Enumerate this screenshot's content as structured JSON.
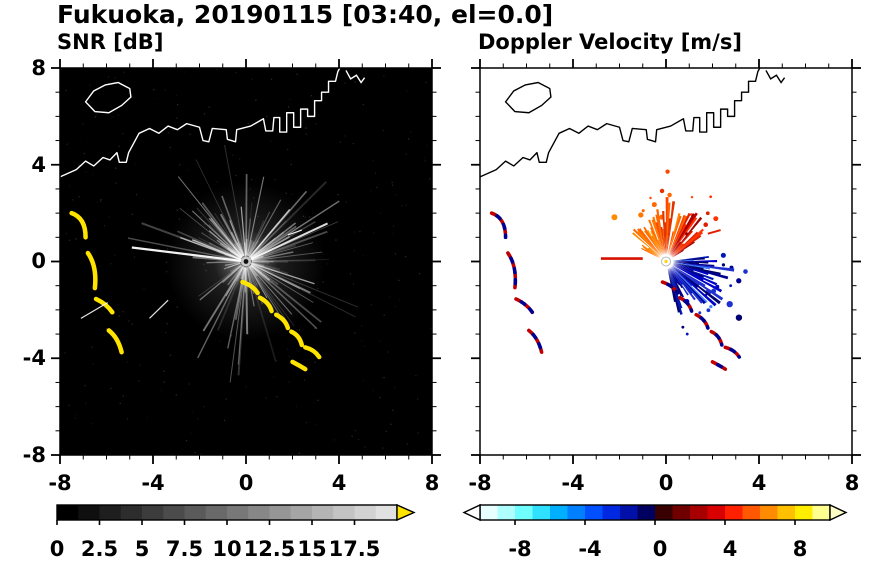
{
  "title": "Fukuoka, 20190115 [03:40, el=0.0]",
  "panels": {
    "left": {
      "label": "SNR [dB]"
    },
    "right": {
      "label": "Doppler Velocity [m/s]"
    }
  },
  "axes": {
    "x_ticks": [
      "-8",
      "-4",
      "0",
      "4",
      "8"
    ],
    "y_ticks": [
      "8",
      "4",
      "0",
      "-4",
      "-8"
    ]
  },
  "colorbars": {
    "snr": {
      "labels": [
        "0",
        "2.5",
        "5",
        "7.5",
        "10",
        "12.5",
        "15",
        "17.5"
      ]
    },
    "velocity": {
      "labels": [
        "-8",
        "-4",
        "0",
        "4",
        "8"
      ]
    }
  },
  "chart_data": [
    {
      "type": "heatmap",
      "title": "SNR [dB]",
      "xlim": [
        -8,
        8
      ],
      "ylim": [
        -8,
        8
      ],
      "x_tick_values": [
        -8,
        -4,
        0,
        4,
        8
      ],
      "y_tick_values": [
        -8,
        -4,
        0,
        4,
        8
      ],
      "radar_location": [
        0,
        0
      ],
      "grid": false,
      "colorbar": {
        "min": 0,
        "max": 20,
        "tick_values": [
          0,
          2.5,
          5,
          7.5,
          10,
          12.5,
          15,
          17.5
        ],
        "palette": [
          "#000000",
          "#0f0f0f",
          "#1e1e1e",
          "#2d2d2d",
          "#3c3c3c",
          "#4b4b4b",
          "#5a5a5a",
          "#696969",
          "#787878",
          "#878787",
          "#969696",
          "#a5a5a5",
          "#b4b4b4",
          "#c3c3c3",
          "#d2d2d2",
          "#e1e1e1"
        ],
        "over": "#ffe400",
        "background": "#000000"
      },
      "features": [
        "black low-SNR background",
        "grey radial spokes (clutter/beam blockage) radiating from the radar at the origin out to ~4 km",
        "white coastline of Hakata Bay across the upper half, island near (-6, 6.8), harbor piers near (2, 6)",
        "high-SNR yellow arc echoes scattered from (-7.5, 2) down to (-5.4, -3.7)",
        "high-SNR yellow echo chain from (0, -1) southeast to (3.2, -4)"
      ]
    },
    {
      "type": "heatmap",
      "title": "Doppler Velocity [m/s]",
      "xlim": [
        -8,
        8
      ],
      "ylim": [
        -8,
        8
      ],
      "x_tick_values": [
        -8,
        -4,
        0,
        4,
        8
      ],
      "y_tick_values": [
        -8,
        -4,
        0,
        4,
        8
      ],
      "radar_location": [
        0,
        0
      ],
      "grid": false,
      "colorbar": {
        "min": -10,
        "max": 10,
        "tick_values": [
          -8,
          -4,
          0,
          4,
          8
        ],
        "palette": [
          "#e8ffff",
          "#b0ffff",
          "#70ffff",
          "#30e0ff",
          "#00b0ff",
          "#0080ff",
          "#0050ff",
          "#0028e0",
          "#0010a8",
          "#000060",
          "#380000",
          "#700000",
          "#a80000",
          "#d80000",
          "#ff2000",
          "#ff5800",
          "#ff8c00",
          "#ffc000",
          "#ffee00",
          "#ffff90"
        ],
        "under": "#ffffff",
        "over": "#ffffc8",
        "background": "#ffffff"
      },
      "features": [
        "white no-data background",
        "positive velocities (orange/red, ~2 to 8 m/s) fan north to northwest of the radar",
        "negative velocities (blue/navy, ~-4 to -9 m/s) fan east to southeast of the radar",
        "black coastline identical to the SNR panel",
        "scattered red/navy echo arcs southwest of the radar and along the chain to the southeast, matching the yellow SNR arcs"
      ]
    }
  ]
}
